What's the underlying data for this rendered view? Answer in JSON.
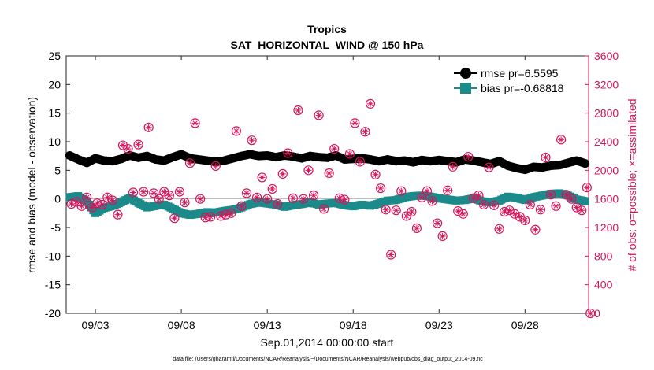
{
  "chart_data": {
    "type": "line",
    "title": "Tropics",
    "subtitle": "SAT_HORIZONTAL_WIND @ 150 hPa",
    "xlabel": "Sep.01,2014 00:00:00 start",
    "ylabel_left": "rmse and bias (model - observation)",
    "ylabel_right": "# of obs: o=possible; ×=assimilated",
    "footer": "data file: /Users/gharamti/Documents/NCAR/Reanalysis/~/Documents/NCAR/Reanalysis/webpub/obs_diag_output_2014-09.nc",
    "x_range_days": [
      0.3,
      30.7
    ],
    "ylim_left": [
      -20,
      25
    ],
    "ylim_right": [
      0,
      3600
    ],
    "x_ticks": [
      {
        "day": 2,
        "label": "09/03"
      },
      {
        "day": 7,
        "label": "09/08"
      },
      {
        "day": 12,
        "label": "09/13"
      },
      {
        "day": 17,
        "label": "09/18"
      },
      {
        "day": 22,
        "label": "09/23"
      },
      {
        "day": 27,
        "label": "09/28"
      }
    ],
    "y_ticks_left": [
      "25",
      "20",
      "15",
      "10",
      "5",
      "0",
      "-5",
      "-10",
      "-15",
      "-20"
    ],
    "y_ticks_right": [
      "3600",
      "3200",
      "2800",
      "2400",
      "2000",
      "1600",
      "1200",
      "800",
      "400",
      "0"
    ],
    "colors": {
      "rmse": "#000000",
      "bias": "#1a8a8a",
      "obs": "#d4145a",
      "zero_line": "#bdbdbd"
    },
    "legend": [
      {
        "name": "rmse pr=6.5595",
        "marker": "circle"
      },
      {
        "name": "bias pr=-0.68818",
        "marker": "square"
      }
    ],
    "rmse_anchors": [
      [
        0.5,
        7.6
      ],
      [
        1.0,
        6.9
      ],
      [
        1.5,
        6.3
      ],
      [
        2.0,
        7.1
      ],
      [
        2.5,
        6.7
      ],
      [
        3.0,
        6.6
      ],
      [
        3.5,
        7.0
      ],
      [
        4.0,
        7.6
      ],
      [
        4.5,
        7.2
      ],
      [
        5.0,
        7.5
      ],
      [
        5.5,
        6.9
      ],
      [
        6.0,
        6.7
      ],
      [
        6.5,
        7.3
      ],
      [
        7.0,
        7.8
      ],
      [
        7.5,
        7.1
      ],
      [
        8.0,
        6.9
      ],
      [
        8.5,
        6.7
      ],
      [
        9.0,
        6.5
      ],
      [
        9.5,
        6.7
      ],
      [
        10.0,
        7.1
      ],
      [
        10.5,
        7.5
      ],
      [
        11.0,
        7.8
      ],
      [
        11.5,
        7.5
      ],
      [
        12.0,
        7.6
      ],
      [
        12.5,
        7.3
      ],
      [
        13.0,
        7.6
      ],
      [
        13.5,
        7.4
      ],
      [
        14.0,
        7.1
      ],
      [
        14.5,
        7.5
      ],
      [
        15.0,
        7.3
      ],
      [
        15.5,
        7.2
      ],
      [
        16.0,
        7.6
      ],
      [
        16.5,
        6.9
      ],
      [
        17.0,
        7.0
      ],
      [
        17.5,
        7.1
      ],
      [
        18.0,
        6.9
      ],
      [
        18.5,
        6.6
      ],
      [
        19.0,
        6.9
      ],
      [
        19.5,
        6.6
      ],
      [
        20.0,
        6.7
      ],
      [
        20.5,
        6.4
      ],
      [
        21.0,
        6.8
      ],
      [
        21.5,
        6.6
      ],
      [
        22.0,
        6.8
      ],
      [
        22.5,
        6.6
      ],
      [
        23.0,
        6.4
      ],
      [
        23.5,
        6.9
      ],
      [
        24.0,
        6.7
      ],
      [
        24.5,
        6.4
      ],
      [
        25.0,
        6.1
      ],
      [
        25.5,
        6.6
      ],
      [
        26.0,
        5.8
      ],
      [
        26.5,
        5.4
      ],
      [
        27.0,
        5.1
      ],
      [
        27.5,
        5.6
      ],
      [
        28.0,
        5.5
      ],
      [
        28.5,
        5.8
      ],
      [
        29.0,
        5.9
      ],
      [
        29.5,
        6.3
      ],
      [
        30.0,
        6.7
      ],
      [
        30.5,
        6.2
      ]
    ],
    "bias_anchors": [
      [
        0.5,
        0.3
      ],
      [
        1.0,
        0.5
      ],
      [
        1.5,
        -0.5
      ],
      [
        2.0,
        -2.5
      ],
      [
        2.5,
        -1.6
      ],
      [
        3.0,
        -1.2
      ],
      [
        3.5,
        -0.6
      ],
      [
        4.0,
        0.2
      ],
      [
        4.5,
        -0.7
      ],
      [
        5.0,
        -1.5
      ],
      [
        5.5,
        -1.2
      ],
      [
        6.0,
        -1.0
      ],
      [
        6.5,
        -1.7
      ],
      [
        7.0,
        -2.5
      ],
      [
        7.5,
        -2.8
      ],
      [
        8.0,
        -2.6
      ],
      [
        8.5,
        -2.3
      ],
      [
        9.0,
        -2.4
      ],
      [
        9.5,
        -2.1
      ],
      [
        10.0,
        -1.9
      ],
      [
        10.5,
        -1.5
      ],
      [
        11.0,
        -0.9
      ],
      [
        11.5,
        -0.6
      ],
      [
        12.0,
        -0.8
      ],
      [
        12.5,
        -1.0
      ],
      [
        13.0,
        -1.4
      ],
      [
        13.5,
        -1.1
      ],
      [
        14.0,
        -0.9
      ],
      [
        14.5,
        -0.6
      ],
      [
        15.0,
        -1.0
      ],
      [
        15.5,
        -0.8
      ],
      [
        16.0,
        -0.7
      ],
      [
        16.5,
        -1.1
      ],
      [
        17.0,
        -1.3
      ],
      [
        17.5,
        -1.0
      ],
      [
        18.0,
        -1.2
      ],
      [
        18.5,
        -0.8
      ],
      [
        19.0,
        -0.3
      ],
      [
        19.5,
        -0.2
      ],
      [
        20.0,
        0.3
      ],
      [
        20.5,
        0.5
      ],
      [
        21.0,
        0.6
      ],
      [
        21.5,
        0.4
      ],
      [
        22.0,
        0.1
      ],
      [
        22.5,
        -0.1
      ],
      [
        23.0,
        -0.3
      ],
      [
        23.5,
        -0.2
      ],
      [
        24.0,
        0.1
      ],
      [
        24.5,
        -0.4
      ],
      [
        25.0,
        -0.6
      ],
      [
        25.5,
        -0.3
      ],
      [
        26.0,
        0.4
      ],
      [
        26.5,
        0.2
      ],
      [
        27.0,
        -0.2
      ],
      [
        27.5,
        0.3
      ],
      [
        28.0,
        0.6
      ],
      [
        28.5,
        0.9
      ],
      [
        29.0,
        1.0
      ],
      [
        29.5,
        0.6
      ],
      [
        30.0,
        -0.1
      ],
      [
        30.5,
        -0.4
      ]
    ],
    "obs_counts": [
      [
        0.6,
        1530
      ],
      [
        0.9,
        1560
      ],
      [
        1.2,
        1500
      ],
      [
        1.5,
        1620
      ],
      [
        1.8,
        1480
      ],
      [
        2.1,
        1540
      ],
      [
        2.4,
        1520
      ],
      [
        2.7,
        1620
      ],
      [
        3.0,
        1580
      ],
      [
        3.3,
        1380
      ],
      [
        3.6,
        2350
      ],
      [
        3.9,
        2300
      ],
      [
        4.2,
        1690
      ],
      [
        4.5,
        2360
      ],
      [
        4.8,
        1700
      ],
      [
        5.1,
        2600
      ],
      [
        5.4,
        1680
      ],
      [
        5.7,
        1600
      ],
      [
        6.0,
        1700
      ],
      [
        6.3,
        1650
      ],
      [
        6.6,
        1330
      ],
      [
        6.9,
        1700
      ],
      [
        7.2,
        1550
      ],
      [
        7.5,
        2100
      ],
      [
        7.8,
        2660
      ],
      [
        8.1,
        1600
      ],
      [
        8.4,
        1340
      ],
      [
        8.7,
        1350
      ],
      [
        9.0,
        2060
      ],
      [
        9.3,
        1360
      ],
      [
        9.6,
        1380
      ],
      [
        9.9,
        1400
      ],
      [
        10.2,
        2550
      ],
      [
        10.5,
        1500
      ],
      [
        10.8,
        1680
      ],
      [
        11.1,
        2420
      ],
      [
        11.4,
        1620
      ],
      [
        11.7,
        1900
      ],
      [
        12.0,
        1600
      ],
      [
        12.3,
        1740
      ],
      [
        12.6,
        1530
      ],
      [
        12.9,
        1950
      ],
      [
        13.2,
        2240
      ],
      [
        13.5,
        1610
      ],
      [
        13.8,
        2840
      ],
      [
        14.1,
        1600
      ],
      [
        14.4,
        2000
      ],
      [
        14.7,
        1650
      ],
      [
        15.0,
        2770
      ],
      [
        15.3,
        1460
      ],
      [
        15.6,
        1960
      ],
      [
        15.9,
        2300
      ],
      [
        16.2,
        1610
      ],
      [
        16.5,
        1590
      ],
      [
        16.8,
        2230
      ],
      [
        17.1,
        2660
      ],
      [
        17.4,
        2120
      ],
      [
        17.7,
        2540
      ],
      [
        18.0,
        2930
      ],
      [
        18.3,
        1940
      ],
      [
        18.6,
        1750
      ],
      [
        18.9,
        1450
      ],
      [
        19.2,
        820
      ],
      [
        19.5,
        1440
      ],
      [
        19.8,
        1710
      ],
      [
        20.1,
        1360
      ],
      [
        20.4,
        1420
      ],
      [
        20.7,
        1190
      ],
      [
        21.0,
        1620
      ],
      [
        21.3,
        1710
      ],
      [
        21.6,
        1570
      ],
      [
        21.9,
        1260
      ],
      [
        22.2,
        1080
      ],
      [
        22.5,
        1720
      ],
      [
        22.8,
        2050
      ],
      [
        23.1,
        1430
      ],
      [
        23.4,
        1390
      ],
      [
        23.7,
        2190
      ],
      [
        24.0,
        1610
      ],
      [
        24.3,
        1650
      ],
      [
        24.6,
        1520
      ],
      [
        24.9,
        2040
      ],
      [
        25.2,
        1510
      ],
      [
        25.5,
        1180
      ],
      [
        25.8,
        1420
      ],
      [
        26.1,
        1440
      ],
      [
        26.4,
        1390
      ],
      [
        26.7,
        1350
      ],
      [
        27.0,
        1300
      ],
      [
        27.3,
        1520
      ],
      [
        27.6,
        1170
      ],
      [
        27.9,
        1450
      ],
      [
        28.2,
        2180
      ],
      [
        28.5,
        1660
      ],
      [
        28.8,
        1500
      ],
      [
        29.1,
        2430
      ],
      [
        29.4,
        1660
      ],
      [
        29.7,
        1600
      ],
      [
        30.0,
        1480
      ],
      [
        30.3,
        1440
      ],
      [
        30.6,
        1760
      ],
      [
        30.8,
        0
      ]
    ]
  }
}
